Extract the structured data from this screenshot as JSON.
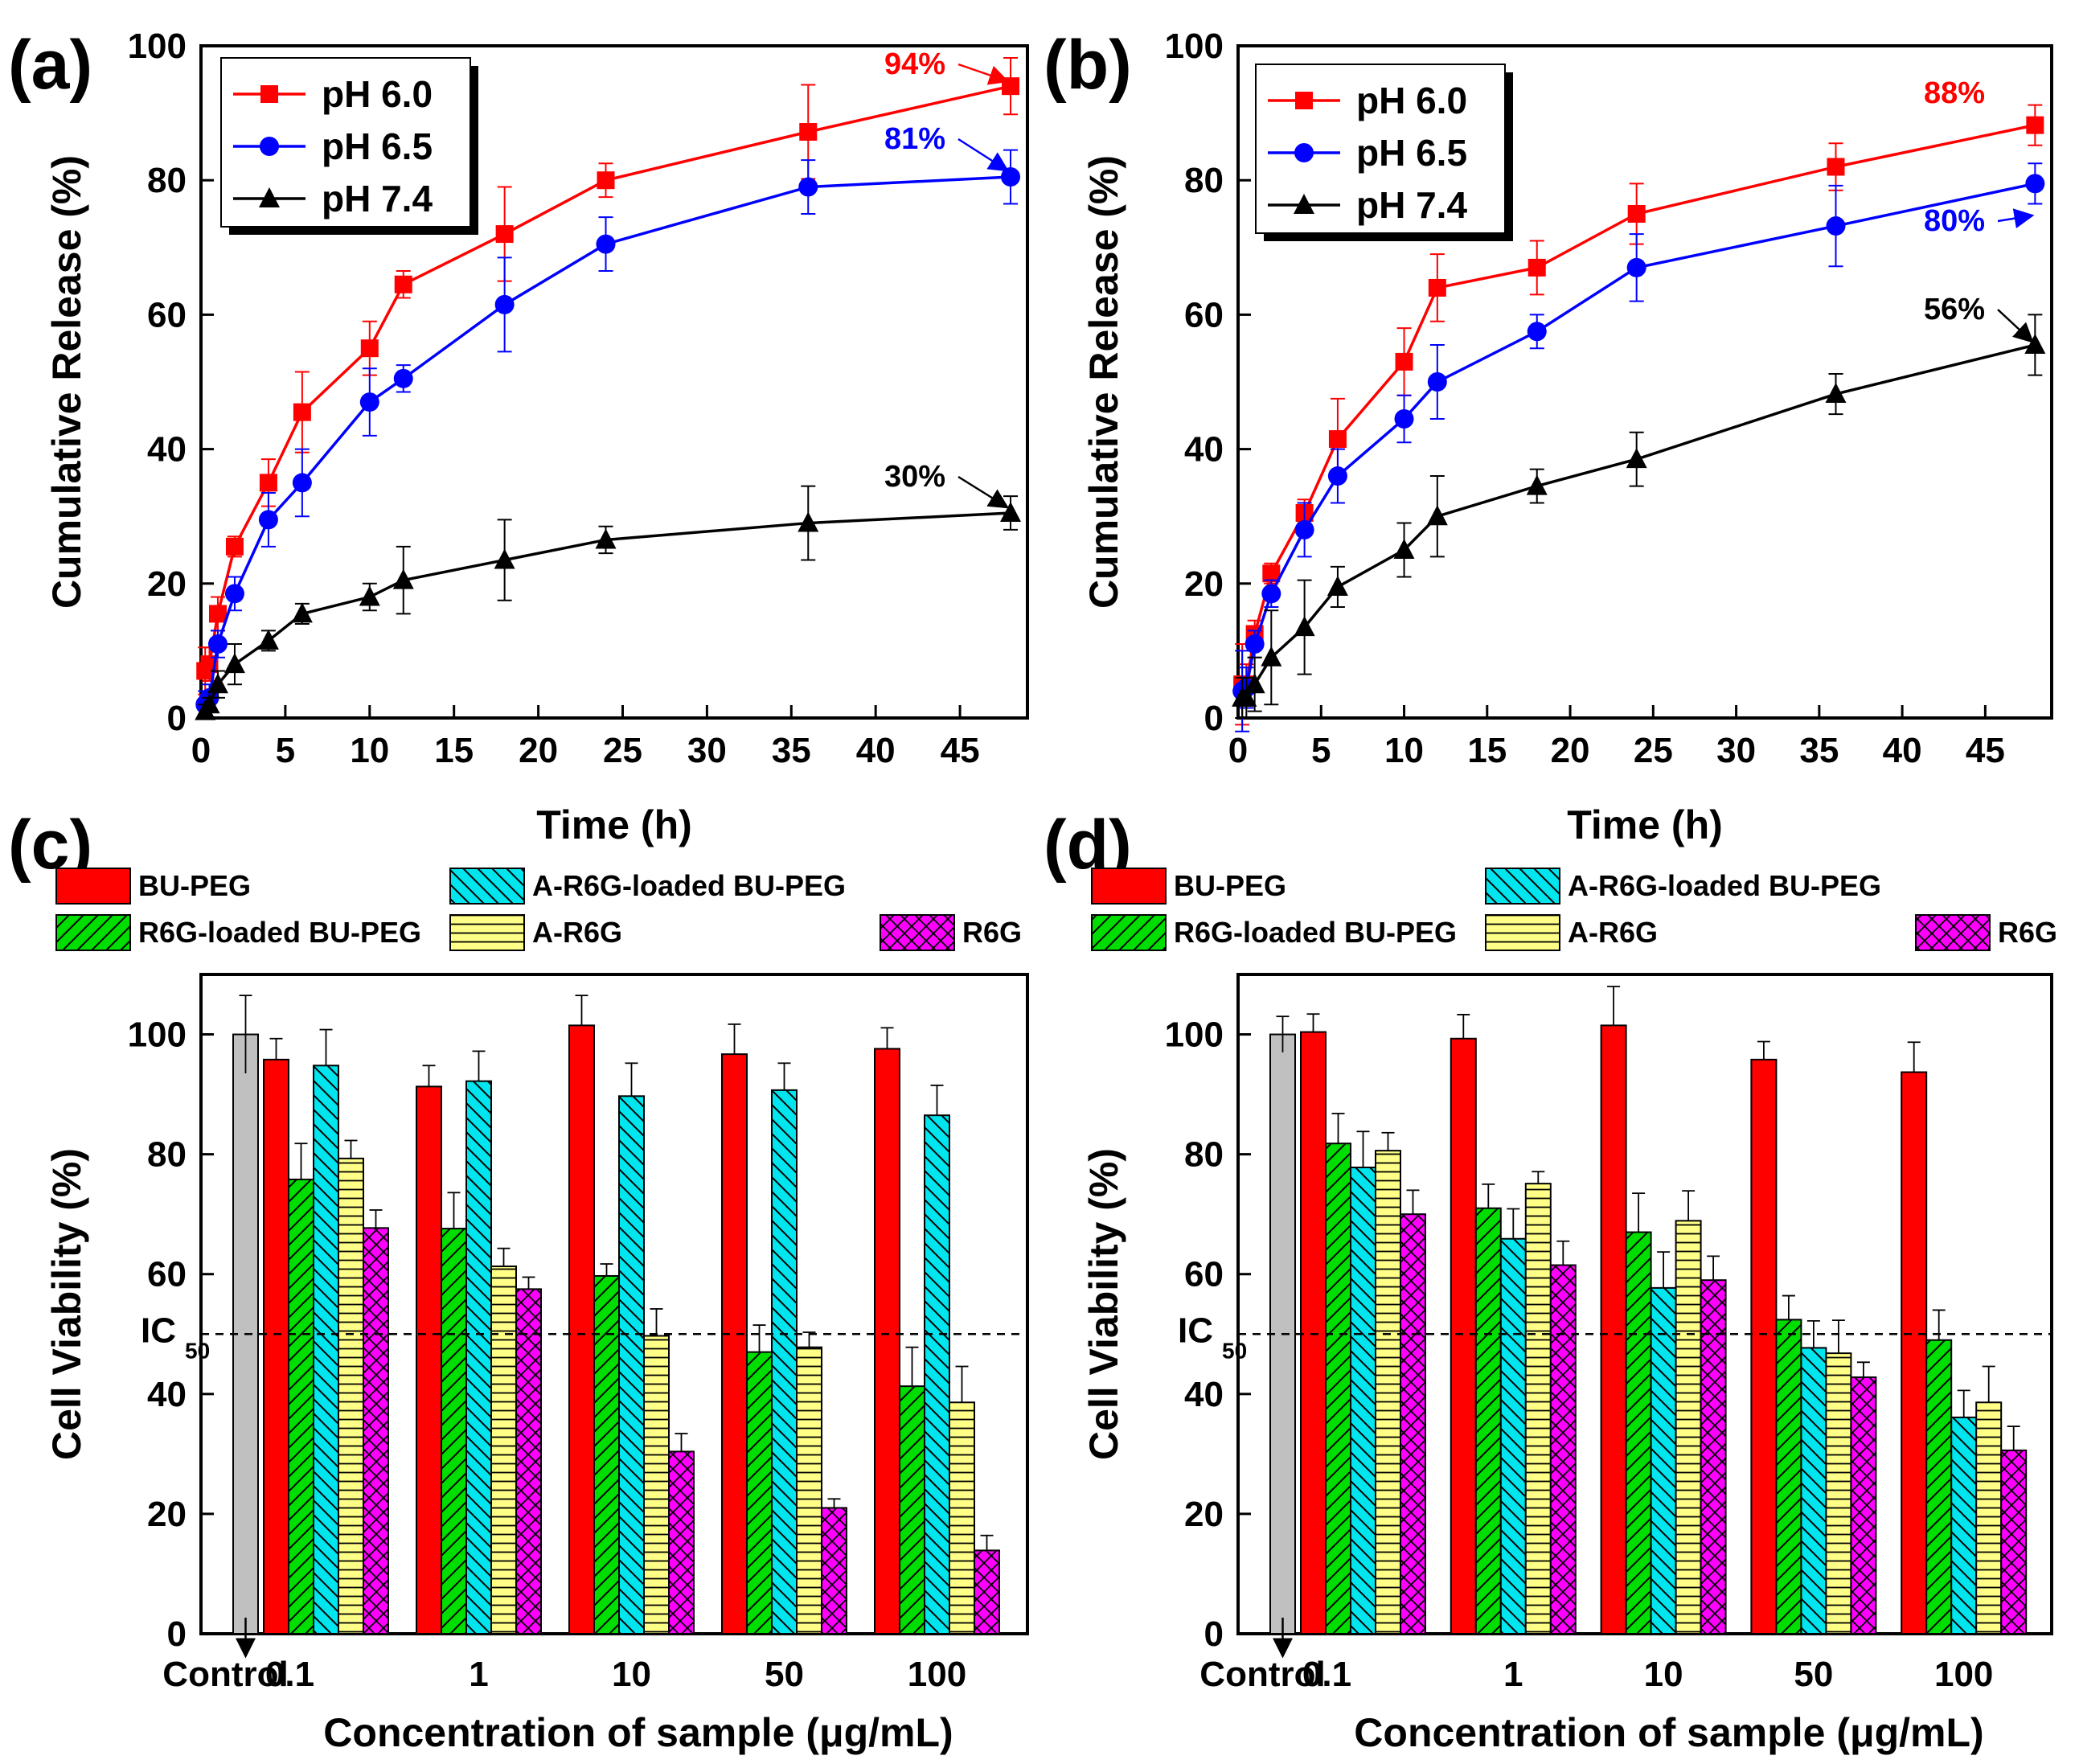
{
  "series_styles": {
    "pH 6.0": {
      "color": "#ff0000",
      "marker": "square"
    },
    "pH 6.5": {
      "color": "#0000ff",
      "marker": "circle"
    },
    "pH 7.4": {
      "color": "#000000",
      "marker": "triangle"
    }
  },
  "bar_styles": {
    "Control": {
      "color": "#c0c0c0",
      "pattern": "none"
    },
    "BU-PEG": {
      "color": "#ff0000",
      "pattern": "none"
    },
    "R6G-loaded BU-PEG": {
      "color": "#00dd00",
      "pattern": "forward-diagonal"
    },
    "A-R6G-loaded BU-PEG": {
      "color": "#00e5ee",
      "pattern": "back-diagonal"
    },
    "A-R6G": {
      "color": "#ffff88",
      "pattern": "horizontal"
    },
    "R6G": {
      "color": "#ff00ff",
      "pattern": "cross-hatch"
    }
  },
  "chart_data": [
    {
      "id": "a",
      "panel_label": "(a)",
      "type": "line",
      "xlabel": "Time (h)",
      "ylabel": "Cumulative Release (%)",
      "xlim": [
        0,
        49
      ],
      "ylim": [
        0,
        100
      ],
      "xticks": [
        0,
        5,
        10,
        15,
        20,
        25,
        30,
        35,
        40,
        45
      ],
      "yticks": [
        0,
        20,
        40,
        60,
        80,
        100
      ],
      "legend_position": "top-left",
      "x": [
        0.25,
        0.5,
        1,
        2,
        4,
        6,
        10,
        12,
        18,
        24,
        36,
        48
      ],
      "series": [
        {
          "name": "pH 6.0",
          "values": [
            7,
            8,
            15.5,
            25.5,
            35,
            45.5,
            55,
            64.5,
            72,
            80,
            87.2,
            94
          ],
          "errors": [
            3.5,
            2.5,
            2.5,
            1.5,
            3.5,
            6,
            4,
            2,
            7,
            2.5,
            7,
            4.2
          ]
        },
        {
          "name": "pH 6.5",
          "values": [
            2,
            3,
            11,
            18.5,
            29.5,
            35,
            47,
            50.5,
            61.5,
            70.5,
            79,
            80.5
          ],
          "errors": [
            2,
            2,
            2,
            2.5,
            4,
            5,
            5,
            2,
            7,
            4,
            4,
            4
          ]
        },
        {
          "name": "pH 7.4",
          "values": [
            1,
            2,
            5,
            8,
            11.5,
            15.5,
            18,
            20.5,
            23.5,
            26.5,
            29,
            30.5
          ],
          "errors": [
            1,
            1,
            2,
            3,
            1.5,
            1.5,
            2,
            5,
            6,
            2,
            5.5,
            2.5
          ]
        }
      ],
      "annotations": [
        {
          "text": "94%",
          "series": "pH 6.0"
        },
        {
          "text": "81%",
          "series": "pH 6.5"
        },
        {
          "text": "30%",
          "series": "pH 7.4"
        }
      ]
    },
    {
      "id": "b",
      "panel_label": "(b)",
      "type": "line",
      "xlabel": "Time (h)",
      "ylabel": "Cumulative Release (%)",
      "xlim": [
        0,
        49
      ],
      "ylim": [
        0,
        100
      ],
      "xticks": [
        0,
        5,
        10,
        15,
        20,
        25,
        30,
        35,
        40,
        45
      ],
      "yticks": [
        0,
        20,
        40,
        60,
        80,
        100
      ],
      "legend_position": "top-left",
      "x": [
        0.25,
        0.5,
        1,
        2,
        4,
        6,
        10,
        12,
        18,
        24,
        36,
        48
      ],
      "series": [
        {
          "name": "pH 6.0",
          "values": [
            5,
            5,
            12.5,
            21.5,
            30.5,
            41.5,
            53,
            64,
            67,
            75,
            82,
            88.2
          ],
          "errors": [
            6,
            3,
            2,
            1.5,
            2,
            6,
            5,
            5,
            4,
            4.5,
            3.5,
            3
          ]
        },
        {
          "name": "pH 6.5",
          "values": [
            4,
            4.5,
            11,
            18.5,
            28,
            36,
            44.5,
            50,
            57.5,
            67,
            73.2,
            79.5
          ],
          "errors": [
            6,
            3,
            2,
            2,
            4,
            4,
            3.5,
            5.5,
            2.5,
            5,
            6,
            3
          ]
        },
        {
          "name": "pH 7.4",
          "values": [
            3,
            3,
            5,
            9,
            13.5,
            19.5,
            25,
            30,
            34.5,
            38.5,
            48.2,
            55.5
          ],
          "errors": [
            3,
            3,
            4,
            7,
            7,
            3,
            4,
            6,
            2.5,
            4,
            3,
            4.5
          ]
        }
      ],
      "annotations": [
        {
          "text": "88%",
          "series": "pH 6.0"
        },
        {
          "text": "80%",
          "series": "pH 6.5"
        },
        {
          "text": "56%",
          "series": "pH 7.4"
        }
      ]
    },
    {
      "id": "c",
      "panel_label": "(c)",
      "type": "bar",
      "xlabel": "Concentration of sample (μg/mL)",
      "ylabel": "Cell Viability (%)",
      "ylim": [
        0,
        110
      ],
      "yticks": [
        0,
        20,
        40,
        60,
        80,
        100
      ],
      "reference_line": {
        "value": 50,
        "label": "IC",
        "subscript": "50"
      },
      "categories": [
        "0.1",
        "1",
        "10",
        "50",
        "100"
      ],
      "control": {
        "label": "Control",
        "value": 100,
        "error": 6.5
      },
      "series": [
        {
          "name": "BU-PEG",
          "values": [
            95.8,
            91.3,
            101.5,
            96.7,
            97.6
          ],
          "errors": [
            3.5,
            3.5,
            5,
            5,
            3.5
          ]
        },
        {
          "name": "R6G-loaded BU-PEG",
          "values": [
            75.8,
            67.6,
            59.7,
            47,
            41.3
          ],
          "errors": [
            6,
            6,
            2,
            4.5,
            6.5
          ]
        },
        {
          "name": "A-R6G-loaded BU-PEG",
          "values": [
            94.8,
            92.2,
            89.7,
            90.7,
            86.5
          ],
          "errors": [
            6,
            5,
            5.5,
            4.5,
            5
          ]
        },
        {
          "name": "A-R6G",
          "values": [
            79.3,
            61.3,
            49.7,
            47.8,
            38.6
          ],
          "errors": [
            3,
            3,
            4.5,
            2.5,
            6
          ]
        },
        {
          "name": "R6G",
          "values": [
            67.7,
            57.5,
            30.4,
            21,
            13.9
          ],
          "errors": [
            3,
            2,
            3,
            1.5,
            2.5
          ]
        }
      ]
    },
    {
      "id": "d",
      "panel_label": "(d)",
      "type": "bar",
      "xlabel": "Concentration of sample (μg/mL)",
      "ylabel": "Cell Viability (%)",
      "ylim": [
        0,
        110
      ],
      "yticks": [
        0,
        20,
        40,
        60,
        80,
        100
      ],
      "reference_line": {
        "value": 50,
        "label": "IC",
        "subscript": "50"
      },
      "categories": [
        "0.1",
        "1",
        "10",
        "50",
        "100"
      ],
      "control": {
        "label": "Control",
        "value": 100,
        "error": 3
      },
      "series": [
        {
          "name": "BU-PEG",
          "values": [
            100.4,
            99.3,
            101.5,
            95.8,
            93.7
          ],
          "errors": [
            3,
            4,
            6.5,
            3,
            5
          ]
        },
        {
          "name": "R6G-loaded BU-PEG",
          "values": [
            81.8,
            71,
            67,
            52.4,
            49
          ],
          "errors": [
            5,
            4,
            6.5,
            4,
            5
          ]
        },
        {
          "name": "A-R6G-loaded BU-PEG",
          "values": [
            77.8,
            65.9,
            57.7,
            47.7,
            36.1
          ],
          "errors": [
            6,
            5,
            6,
            4.5,
            4.5
          ]
        },
        {
          "name": "A-R6G",
          "values": [
            80.6,
            75.1,
            68.9,
            46.8,
            38.6
          ],
          "errors": [
            3,
            2,
            5,
            5.5,
            6
          ]
        },
        {
          "name": "R6G",
          "values": [
            70,
            61.5,
            59,
            42.8,
            30.6
          ],
          "errors": [
            4,
            4,
            4,
            2.5,
            4
          ]
        }
      ]
    }
  ]
}
